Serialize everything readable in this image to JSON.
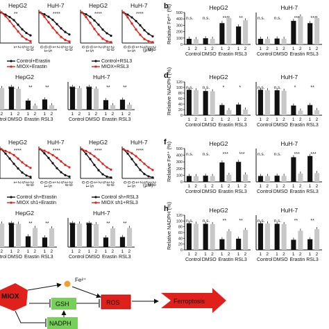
{
  "colors": {
    "black": "#111111",
    "red": "#e0201b",
    "gray": "#c8c8c8",
    "orange": "#f0a030",
    "green": "#77d05a"
  },
  "lines_top": {
    "legend_a": [
      "Control+Erastin",
      "MIOX+Erastin"
    ],
    "legend_b": [
      "Control+RSL3",
      "MIOX+RSL3"
    ],
    "x_ticks": [
      "0",
      "0.1",
      "0.5",
      "1",
      "2",
      "5",
      "10",
      "20"
    ],
    "x_ticks_partial": [
      "1",
      "2",
      "5",
      "10",
      "20"
    ],
    "x_unit": "(μM)",
    "panels": [
      {
        "title": "HepG2",
        "black": [
          100,
          93,
          85,
          75,
          60,
          45,
          33,
          25
        ],
        "red": [
          100,
          88,
          72,
          55,
          38,
          22,
          12,
          6
        ]
      },
      {
        "title": "HuH-7",
        "black": [
          100,
          94,
          86,
          76,
          62,
          48,
          36,
          28
        ],
        "red": [
          100,
          86,
          68,
          50,
          34,
          20,
          10,
          5
        ]
      },
      {
        "title": "HepG2",
        "black": [
          100,
          94,
          86,
          74,
          60,
          44,
          32,
          24
        ],
        "red": [
          100,
          85,
          66,
          46,
          28,
          14,
          6,
          3
        ]
      },
      {
        "title": "HuH-7",
        "black": [
          100,
          93,
          84,
          72,
          58,
          42,
          30,
          22
        ],
        "red": [
          100,
          84,
          64,
          44,
          27,
          13,
          6,
          3
        ]
      }
    ],
    "stars": [
      "**",
      "****",
      "****",
      "****"
    ]
  },
  "lines_bottom": {
    "legend_a": [
      "Control sh+Erastin",
      "MIOX sh1+Erastin"
    ],
    "legend_b": [
      "Control sh+RSL3",
      "MIOX sh1+RSL3"
    ],
    "x_ticks": [
      "0",
      "0.1",
      "0.5",
      "1",
      "2",
      "5",
      "10",
      "20"
    ],
    "x_ticks_partial": [
      "1",
      "2",
      "5",
      "10",
      "20"
    ],
    "panels": [
      {
        "title": "HepG2",
        "black": [
          100,
          85,
          68,
          50,
          34,
          20,
          10,
          5
        ],
        "red": [
          100,
          94,
          88,
          80,
          68,
          55,
          44,
          36
        ]
      },
      {
        "title": "HuH-7",
        "black": [
          100,
          86,
          70,
          52,
          35,
          21,
          11,
          6
        ],
        "red": [
          100,
          95,
          88,
          80,
          70,
          58,
          46,
          38
        ]
      },
      {
        "title": "HepG2",
        "black": [
          100,
          84,
          66,
          46,
          28,
          14,
          6,
          3
        ],
        "red": [
          100,
          94,
          86,
          76,
          64,
          50,
          38,
          30
        ]
      },
      {
        "title": "HuH-7",
        "black": [
          100,
          85,
          66,
          47,
          29,
          15,
          7,
          3
        ],
        "red": [
          100,
          94,
          86,
          76,
          63,
          50,
          38,
          29
        ]
      }
    ],
    "stars": [
      "****",
      "****",
      "****",
      "****"
    ]
  },
  "bar_labels": {
    "groups": [
      "Control",
      "DMSO",
      "Erastin",
      "RSL3"
    ],
    "group_sublabels": [
      "1",
      "2"
    ],
    "ns": "n.s.",
    "panel_b": {
      "letter": "b",
      "ylabel": "Relative Fe²⁺ (%)"
    },
    "panel_d": {
      "letter": "d",
      "ylabel": "Relative NADPH (%)"
    },
    "panel_f": {
      "letter": "f",
      "ylabel": "Relative Fe²⁺ (%)"
    },
    "panel_h": {
      "letter": "h",
      "ylabel": "Relative NADPH (%)"
    },
    "yticks_fe": [
      "0",
      "100",
      "200",
      "300",
      "400",
      "500"
    ],
    "yticks_nadph": [
      "0",
      "20",
      "40",
      "60",
      "80",
      "100",
      "120"
    ]
  },
  "chart_data": [
    {
      "type": "bar",
      "id": "left-row2",
      "groups": [
        "Control",
        "DMSO",
        "Erastin",
        "RSL3"
      ],
      "series": [
        {
          "name": "1",
          "values": [
            100,
            100,
            40,
            45,
            100,
            100,
            42,
            44
          ]
        },
        {
          "name": "2",
          "values": [
            95,
            92,
            18,
            20,
            95,
            93,
            20,
            22
          ]
        }
      ],
      "titles": [
        "HepG2",
        "HuH-7"
      ],
      "stars": [
        "**",
        "**",
        "**",
        "**"
      ]
    },
    {
      "type": "bar",
      "id": "left-row4",
      "groups": [
        "Control",
        "DMSO",
        "Erastin",
        "RSL3"
      ],
      "series": [
        {
          "name": "1",
          "values": [
            100,
            100,
            45,
            40,
            100,
            100,
            40,
            42
          ]
        },
        {
          "name": "2",
          "values": [
            98,
            97,
            80,
            78,
            98,
            96,
            78,
            80
          ]
        }
      ],
      "titles": [
        "HepG2",
        "HuH-7"
      ],
      "stars": [
        "**",
        "**",
        "**",
        "**"
      ]
    },
    {
      "type": "bar",
      "id": "b",
      "ylim": [
        0,
        500
      ],
      "groups": [
        "Control",
        "DMSO",
        "Erastin",
        "RSL3"
      ],
      "series": [
        {
          "name": "1",
          "values": [
            100,
            110,
            380,
            320,
            100,
            105,
            420,
            380
          ]
        },
        {
          "name": "2",
          "values": [
            95,
            100,
            470,
            430,
            100,
            100,
            500,
            470
          ]
        }
      ],
      "titles": [
        "HepG2",
        "HuH-7"
      ],
      "stars": [
        "***",
        "**",
        "***",
        "***"
      ]
    },
    {
      "type": "bar",
      "id": "d",
      "ylim": [
        0,
        120
      ],
      "groups": [
        "Control",
        "DMSO",
        "Erastin",
        "RSL3"
      ],
      "series": [
        {
          "name": "1",
          "values": [
            100,
            95,
            40,
            42,
            100,
            98,
            38,
            40
          ]
        },
        {
          "name": "2",
          "values": [
            98,
            94,
            20,
            22,
            98,
            96,
            18,
            20
          ]
        }
      ],
      "titles": [
        "HepG2",
        "HuH-7"
      ],
      "stars": [
        "*",
        "*",
        "*",
        "**"
      ]
    },
    {
      "type": "bar",
      "id": "f",
      "ylim": [
        0,
        500
      ],
      "groups": [
        "Control",
        "DMSO",
        "Erastin",
        "RSL3"
      ],
      "series": [
        {
          "name": "1",
          "values": [
            100,
            105,
            330,
            340,
            100,
            105,
            420,
            440
          ]
        },
        {
          "name": "2",
          "values": [
            98,
            100,
            120,
            125,
            100,
            102,
            140,
            150
          ]
        }
      ],
      "titles": [
        "HepG2",
        "HuH-7"
      ],
      "stars": [
        "***",
        "***",
        "***",
        "***"
      ]
    },
    {
      "type": "bar",
      "id": "h",
      "ylim": [
        0,
        120
      ],
      "groups": [
        "Control",
        "DMSO",
        "Erastin",
        "RSL3"
      ],
      "series": [
        {
          "name": "1",
          "values": [
            100,
            98,
            40,
            42,
            100,
            98,
            38,
            40
          ]
        },
        {
          "name": "2",
          "values": [
            98,
            97,
            70,
            75,
            99,
            97,
            72,
            78
          ]
        }
      ],
      "titles": [
        "HepG2",
        "HuH-7"
      ],
      "stars": [
        "**",
        "**",
        "**",
        "**"
      ]
    }
  ],
  "pathway": {
    "miox": "MIOX",
    "fe": "Fe²⁺",
    "gsh": "GSH",
    "nadph": "NADPH",
    "ros": "ROS",
    "ferroptosis": "Ferroptosis"
  }
}
